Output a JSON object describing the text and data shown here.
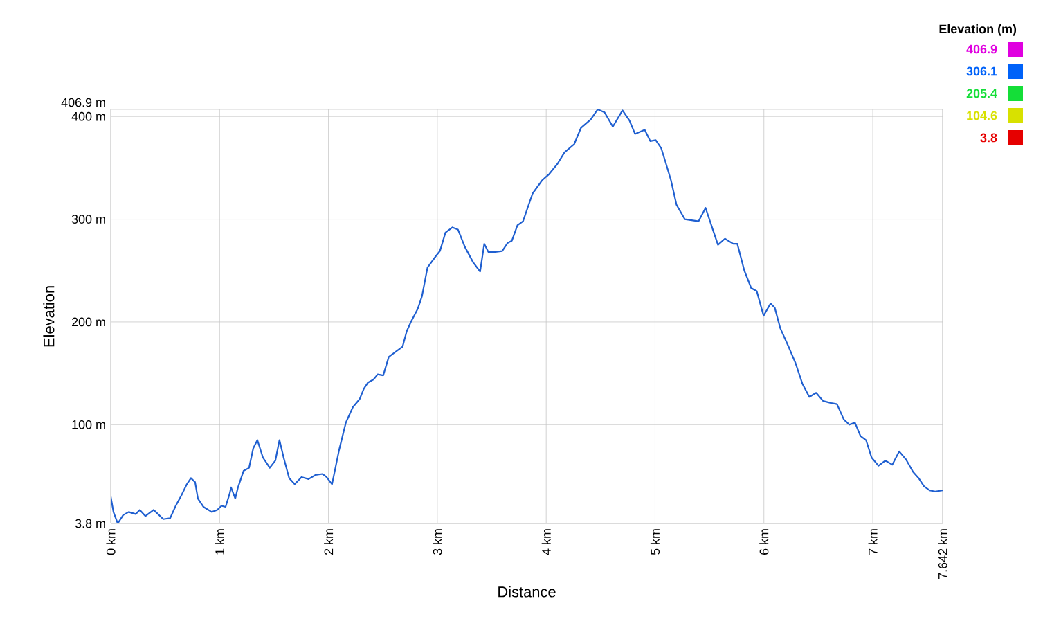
{
  "chart_data": {
    "type": "line",
    "xlabel": "Distance",
    "ylabel": "Elevation",
    "legend_title": "Elevation (m)",
    "annotations": [
      "406.9",
      "306.1",
      "205.4",
      "104.6",
      "3.8"
    ],
    "xlim": [
      0,
      7.642
    ],
    "ylim": [
      3.8,
      406.9
    ],
    "grid": true,
    "xticks": [
      {
        "value": 0,
        "label": "0 km"
      },
      {
        "value": 1,
        "label": "1 km"
      },
      {
        "value": 2,
        "label": "2 km"
      },
      {
        "value": 3,
        "label": "3 km"
      },
      {
        "value": 4,
        "label": "4 km"
      },
      {
        "value": 5,
        "label": "5 km"
      },
      {
        "value": 6,
        "label": "6 km"
      },
      {
        "value": 7,
        "label": "7 km"
      },
      {
        "value": 7.642,
        "label": "7.642 km"
      }
    ],
    "yticks": [
      {
        "value": 3.8,
        "label": "3.8 m"
      },
      {
        "value": 100,
        "label": "100 m"
      },
      {
        "value": 200,
        "label": "200 m"
      },
      {
        "value": 300,
        "label": "300 m"
      },
      {
        "value": 400,
        "label": "400 m"
      },
      {
        "value": 406.9,
        "label": "406.9 m"
      }
    ],
    "series": [
      {
        "color": "#1f5fd0",
        "x": [
          0,
          0.025,
          0.064,
          0.114,
          0.165,
          0.229,
          0.267,
          0.318,
          0.394,
          0.483,
          0.546,
          0.597,
          0.648,
          0.699,
          0.737,
          0.775,
          0.801,
          0.851,
          0.928,
          0.978,
          1.017,
          1.055,
          1.093,
          1.105,
          1.144,
          1.169,
          1.22,
          1.271,
          1.309,
          1.347,
          1.398,
          1.461,
          1.512,
          1.55,
          1.588,
          1.639,
          1.69,
          1.753,
          1.817,
          1.881,
          1.944,
          1.982,
          2.033,
          2.097,
          2.16,
          2.224,
          2.287,
          2.325,
          2.363,
          2.414,
          2.452,
          2.503,
          2.554,
          2.618,
          2.681,
          2.719,
          2.757,
          2.821,
          2.859,
          2.91,
          2.986,
          3.024,
          3.075,
          3.139,
          3.189,
          3.253,
          3.329,
          3.393,
          3.431,
          3.469,
          3.52,
          3.596,
          3.647,
          3.685,
          3.736,
          3.787,
          3.875,
          3.964,
          4.028,
          4.104,
          4.168,
          4.257,
          4.32,
          4.409,
          4.473,
          4.536,
          4.612,
          4.701,
          4.765,
          4.816,
          4.905,
          4.956,
          5.006,
          5.057,
          5.095,
          5.146,
          5.197,
          5.273,
          5.4,
          5.464,
          5.527,
          5.578,
          5.642,
          5.718,
          5.756,
          5.82,
          5.883,
          5.934,
          5.997,
          6.061,
          6.099,
          6.15,
          6.226,
          6.29,
          6.353,
          6.417,
          6.48,
          6.544,
          6.62,
          6.671,
          6.734,
          6.785,
          6.836,
          6.887,
          6.938,
          6.989,
          7.052,
          7.116,
          7.179,
          7.243,
          7.306,
          7.37,
          7.421,
          7.471,
          7.522,
          7.573,
          7.642
        ],
        "values": [
          30,
          15,
          3.8,
          12,
          15,
          13,
          17,
          11,
          17,
          8,
          9,
          21,
          31,
          42,
          48,
          44,
          28,
          20,
          15,
          17,
          21,
          20,
          33,
          39,
          28,
          39,
          55,
          58,
          77,
          85,
          68,
          58,
          65,
          85,
          68,
          48,
          42,
          49,
          47,
          51,
          52,
          49,
          42,
          75,
          102,
          117,
          125,
          135,
          141,
          144,
          149,
          148,
          166,
          171,
          176,
          191,
          200,
          213,
          225,
          253,
          264,
          269,
          287,
          292,
          290,
          273,
          258,
          249,
          276,
          268,
          268,
          269,
          277,
          279,
          294,
          298,
          325,
          338,
          344,
          354,
          365,
          373,
          389,
          397,
          406.9,
          404,
          390,
          406,
          396,
          383,
          387,
          376,
          377,
          369,
          356,
          338,
          314,
          300,
          298,
          311,
          291,
          275,
          281,
          276,
          276,
          250,
          233,
          230,
          206,
          218,
          214,
          194,
          176,
          160,
          140,
          127,
          131,
          123,
          121,
          120,
          105,
          100,
          102,
          89,
          85,
          68,
          60,
          65,
          61,
          74,
          66,
          54,
          48,
          40,
          36,
          35,
          36
        ]
      }
    ]
  }
}
